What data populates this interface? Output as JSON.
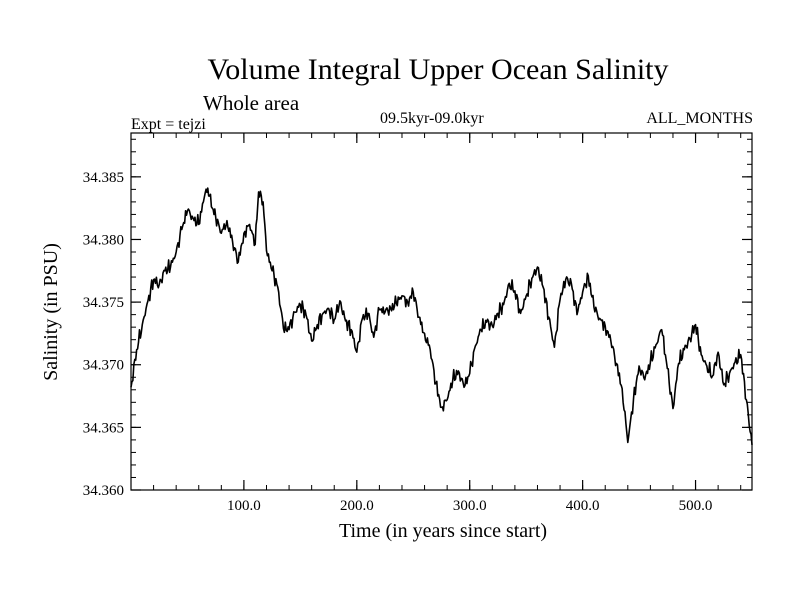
{
  "chart_data": {
    "type": "line",
    "title": "Volume Integral Upper Ocean Salinity",
    "subtitle": "Whole area",
    "experiment": "Expt = tejzi",
    "period": "09.5kyr-09.0kyr",
    "months": "ALL_MONTHS",
    "xlabel": "Time (in years since start)",
    "ylabel": "Salinity (in PSU)",
    "xlim": [
      0,
      550
    ],
    "ylim": [
      34.36,
      34.3885
    ],
    "xticks": [
      100,
      200,
      300,
      400,
      500
    ],
    "xtick_labels": [
      "100.0",
      "200.0",
      "300.0",
      "400.0",
      "500.0"
    ],
    "yticks": [
      34.36,
      34.365,
      34.37,
      34.375,
      34.38,
      34.385
    ],
    "ytick_labels": [
      "34.360",
      "34.365",
      "34.370",
      "34.375",
      "34.380",
      "34.385"
    ],
    "x_minor_step": 20,
    "y_minor_step": 0.001,
    "grid": false,
    "series": [
      {
        "name": "Salinity",
        "color": "#000000",
        "x": [
          0,
          5,
          10,
          15,
          20,
          25,
          30,
          35,
          40,
          45,
          50,
          55,
          60,
          65,
          68,
          72,
          75,
          80,
          85,
          90,
          95,
          100,
          105,
          110,
          113,
          117,
          120,
          125,
          130,
          135,
          140,
          145,
          150,
          155,
          160,
          165,
          170,
          175,
          180,
          185,
          190,
          195,
          200,
          205,
          210,
          215,
          220,
          225,
          230,
          235,
          240,
          245,
          250,
          255,
          260,
          265,
          270,
          275,
          280,
          285,
          290,
          295,
          300,
          305,
          310,
          315,
          320,
          325,
          330,
          335,
          340,
          345,
          350,
          355,
          360,
          365,
          370,
          375,
          380,
          385,
          390,
          395,
          400,
          405,
          410,
          415,
          420,
          425,
          430,
          435,
          440,
          445,
          450,
          455,
          460,
          465,
          470,
          475,
          480,
          485,
          490,
          495,
          500,
          505,
          510,
          515,
          520,
          525,
          530,
          535,
          540,
          545,
          550
        ],
        "values": [
          34.3682,
          34.3712,
          34.3732,
          34.3751,
          34.3768,
          34.3764,
          34.3775,
          34.3778,
          34.379,
          34.3808,
          34.3823,
          34.3817,
          34.3812,
          34.3834,
          34.3841,
          34.3825,
          34.3818,
          34.3805,
          34.3815,
          34.3798,
          34.3782,
          34.3805,
          34.3812,
          34.3796,
          34.3838,
          34.383,
          34.3791,
          34.3775,
          34.3762,
          34.3729,
          34.3728,
          34.3742,
          34.3748,
          34.374,
          34.3719,
          34.3732,
          34.3741,
          34.3745,
          34.3736,
          34.3751,
          34.3735,
          34.3728,
          34.371,
          34.3737,
          34.3741,
          34.3722,
          34.3744,
          34.3742,
          34.3745,
          34.3749,
          34.3755,
          34.375,
          34.3758,
          34.3738,
          34.3725,
          34.3712,
          34.3685,
          34.3666,
          34.3672,
          34.3688,
          34.3695,
          34.3682,
          34.3693,
          34.3715,
          34.3728,
          34.3734,
          34.3731,
          34.3741,
          34.3748,
          34.3765,
          34.3759,
          34.3741,
          34.3755,
          34.3769,
          34.3778,
          34.3762,
          34.3738,
          34.3714,
          34.3752,
          34.3768,
          34.3765,
          34.374,
          34.3758,
          34.3771,
          34.3746,
          34.3737,
          34.3731,
          34.3719,
          34.3701,
          34.3681,
          34.3638,
          34.3672,
          34.3699,
          34.3688,
          34.3702,
          34.3716,
          34.3728,
          34.3697,
          34.3665,
          34.3701,
          34.3712,
          34.3721,
          34.3732,
          34.3708,
          34.3699,
          34.3691,
          34.371,
          34.3684,
          34.3693,
          34.3702,
          34.3708,
          34.3672,
          34.3636
        ]
      }
    ]
  }
}
